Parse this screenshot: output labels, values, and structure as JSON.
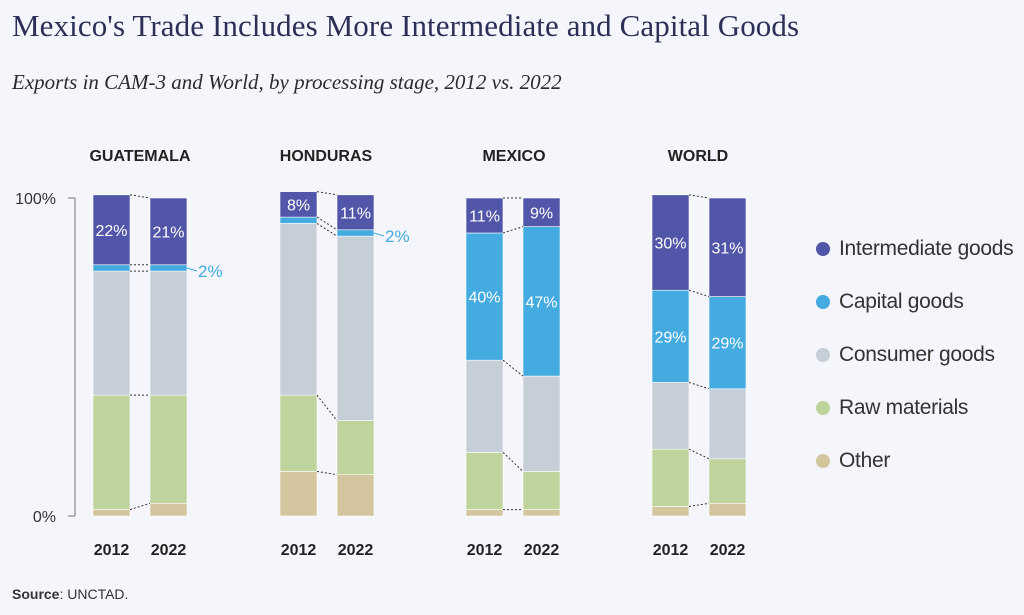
{
  "title": "Mexico's Trade Includes More Intermediate and Capital Goods",
  "subtitle": "Exports in CAM-3 and World, by processing stage, 2012 vs. 2022",
  "source_label": "Source",
  "source_text": ":  UNCTAD.",
  "colors": {
    "Intermediate goods": "#5256a8",
    "Capital goods": "#43abe0",
    "Consumer goods": "#c6ced8",
    "Raw materials": "#bfd39c",
    "Other": "#d3c69e"
  },
  "chart_data": {
    "type": "bar",
    "subtype": "stacked-100",
    "y_axis": {
      "ticks": [
        "0%",
        "100%"
      ],
      "ylim": [
        0,
        100
      ]
    },
    "stack_order_bottom_to_top": [
      "Other",
      "Raw materials",
      "Consumer goods",
      "Capital goods",
      "Intermediate goods"
    ],
    "groups": [
      {
        "name": "GUATEMALA",
        "bars": [
          {
            "year": "2012",
            "values": {
              "Other": 2,
              "Raw materials": 36,
              "Consumer goods": 39,
              "Capital goods": 2,
              "Intermediate goods": 22
            },
            "labels": {
              "Intermediate goods": "22%"
            }
          },
          {
            "year": "2022",
            "values": {
              "Other": 4,
              "Raw materials": 34,
              "Consumer goods": 39,
              "Capital goods": 2,
              "Intermediate goods": 21
            },
            "labels": {
              "Intermediate goods": "21%"
            },
            "callout": {
              "series": "Capital goods",
              "text": "2%"
            }
          }
        ]
      },
      {
        "name": "HONDURAS",
        "bars": [
          {
            "year": "2012",
            "values": {
              "Other": 14,
              "Raw materials": 24,
              "Consumer goods": 54,
              "Capital goods": 2,
              "Intermediate goods": 8
            },
            "labels": {
              "Intermediate goods": "8%"
            }
          },
          {
            "year": "2022",
            "values": {
              "Other": 13,
              "Raw materials": 17,
              "Consumer goods": 58,
              "Capital goods": 2,
              "Intermediate goods": 11
            },
            "labels": {
              "Intermediate goods": "11%"
            },
            "callout": {
              "series": "Capital goods",
              "text": "2%"
            }
          }
        ]
      },
      {
        "name": "MEXICO",
        "bars": [
          {
            "year": "2012",
            "values": {
              "Other": 2,
              "Raw materials": 18,
              "Consumer goods": 29,
              "Capital goods": 40,
              "Intermediate goods": 11
            },
            "labels": {
              "Capital goods": "40%",
              "Intermediate goods": "11%"
            }
          },
          {
            "year": "2022",
            "values": {
              "Other": 2,
              "Raw materials": 12,
              "Consumer goods": 30,
              "Capital goods": 47,
              "Intermediate goods": 9
            },
            "labels": {
              "Capital goods": "47%",
              "Intermediate goods": "9%"
            }
          }
        ]
      },
      {
        "name": "WORLD",
        "bars": [
          {
            "year": "2012",
            "values": {
              "Other": 3,
              "Raw materials": 18,
              "Consumer goods": 21,
              "Capital goods": 29,
              "Intermediate goods": 30
            },
            "labels": {
              "Capital goods": "29%",
              "Intermediate goods": "30%"
            }
          },
          {
            "year": "2022",
            "values": {
              "Other": 4,
              "Raw materials": 14,
              "Consumer goods": 22,
              "Capital goods": 29,
              "Intermediate goods": 31
            },
            "labels": {
              "Capital goods": "29%",
              "Intermediate goods": "31%"
            }
          }
        ]
      }
    ],
    "legend": {
      "placement": "right",
      "items": [
        "Intermediate goods",
        "Capital goods",
        "Consumer goods",
        "Raw materials",
        "Other"
      ]
    }
  }
}
